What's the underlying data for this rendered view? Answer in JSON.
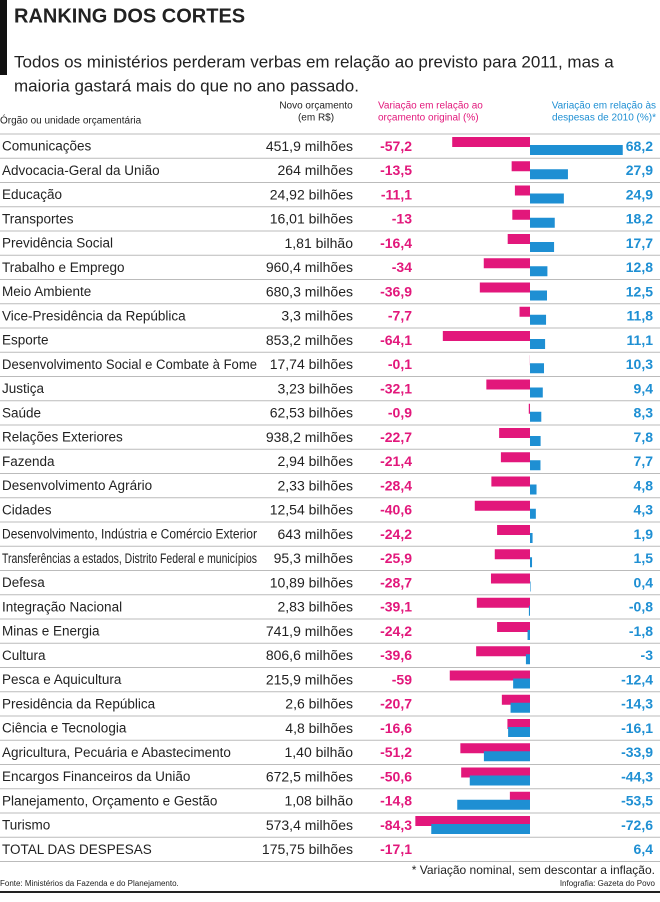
{
  "chart_data": {
    "type": "bar",
    "title": "RANKING DOS CORTES",
    "subtitle": [
      "Todos os ministérios perderam verbas em relação ao previsto para 2011, mas a",
      "maioria gastará mais do que no ano passado."
    ],
    "category_header": "Órgão ou unidade orçamentária",
    "budget_header": [
      "Novo orçamento",
      "(em R$)"
    ],
    "categories": [
      "Comunicações",
      "Advocacia-Geral da União",
      "Educação",
      "Transportes",
      "Previdência Social",
      "Trabalho e Emprego",
      "Meio Ambiente",
      "Vice-Presidência da República",
      "Esporte",
      "Desenvolvimento Social e Combate à Fome",
      "Justiça",
      "Saúde",
      "Relações Exteriores",
      "Fazenda",
      "Desenvolvimento Agrário",
      "Cidades",
      "Desenvolvimento, Indústria e Comércio Exterior",
      "Transferências a estados, Distrito Federal e municípios",
      "Defesa",
      "Integração Nacional",
      "Minas e Energia",
      "Cultura",
      "Pesca e Aquicultura",
      "Presidência da República",
      "Ciência e Tecnologia",
      "Agricultura, Pecuária e Abastecimento",
      "Encargos Financeiros da União",
      "Planejamento, Orçamento e Gestão",
      "Turismo"
    ],
    "budget": [
      "451,9 milhões",
      "264 milhões",
      "24,92 bilhões",
      "16,01 bilhões",
      "1,81 bilhão",
      "960,4 milhões",
      "680,3 milhões",
      "3,3 milhões",
      "853,2 milhões",
      "17,74 bilhões",
      "3,23 bilhões",
      "62,53 bilhões",
      "938,2 milhões",
      "2,94 bilhões",
      "2,33 bilhões",
      "12,54 bilhões",
      "643 milhões",
      "95,3 milhões",
      "10,89 bilhões",
      "2,83 bilhões",
      "741,9 milhões",
      "806,6 milhões",
      "215,9 milhões",
      "2,6 bilhões",
      "4,8 bilhões",
      "1,40 bilhão",
      "672,5 milhões",
      "1,08 bilhão",
      "573,4 milhões"
    ],
    "series": [
      {
        "name": [
          "Variação em relação ao",
          "orçamento original (%)"
        ],
        "color": "#e2177b",
        "values": [
          -57.2,
          -13.5,
          -11.1,
          -13,
          -16.4,
          -34,
          -36.9,
          -7.7,
          -64.1,
          -0.1,
          -32.1,
          -0.9,
          -22.7,
          -21.4,
          -28.4,
          -40.6,
          -24.2,
          -25.9,
          -28.7,
          -39.1,
          -24.2,
          -39.6,
          -59,
          -20.7,
          -16.6,
          -51.2,
          -50.6,
          -14.8,
          -84.3
        ],
        "value_labels": [
          "-57,2",
          "-13,5",
          "-11,1",
          "-13",
          "-16,4",
          "-34",
          "-36,9",
          "-7,7",
          "-64,1",
          "-0,1",
          "-32,1",
          "-0,9",
          "-22,7",
          "-21,4",
          "-28,4",
          "-40,6",
          "-24,2",
          "-25,9",
          "-28,7",
          "-39,1",
          "-24,2",
          "-39,6",
          "-59",
          "-20,7",
          "-16,6",
          "-51,2",
          "-50,6",
          "-14,8",
          "-84,3"
        ]
      },
      {
        "name": [
          "Variação em relação às",
          "despesas de 2010 (%)*"
        ],
        "color": "#1e8fd3",
        "values": [
          68.2,
          27.9,
          24.9,
          18.2,
          17.7,
          12.8,
          12.5,
          11.8,
          11.1,
          10.3,
          9.4,
          8.3,
          7.8,
          7.7,
          4.8,
          4.3,
          1.9,
          1.5,
          0.4,
          -0.8,
          -1.8,
          -3,
          -12.4,
          -14.3,
          -16.1,
          -33.9,
          -44.3,
          -53.5,
          -72.6
        ],
        "value_labels": [
          "68,2",
          "27,9",
          "24,9",
          "18,2",
          "17,7",
          "12,8",
          "12,5",
          "11,8",
          "11,1",
          "10,3",
          "9,4",
          "8,3",
          "7,8",
          "7,7",
          "4,8",
          "4,3",
          "1,9",
          "1,5",
          "0,4",
          "-0,8",
          "-1,8",
          "-3",
          "-12,4",
          "-14,3",
          "-16,1",
          "-33,9",
          "-44,3",
          "-53,5",
          "-72,6"
        ]
      }
    ],
    "total": {
      "label": "TOTAL DAS DESPESAS",
      "budget": "175,75 bilhões",
      "change_original": "-17,1",
      "change_2010": "6,4"
    },
    "footnote": "* Variação nominal, sem descontar a inflação.",
    "source": "Fonte: Ministérios da Fazenda e do Planejamento.",
    "credit": "Infografia: Gazeta do Povo"
  }
}
